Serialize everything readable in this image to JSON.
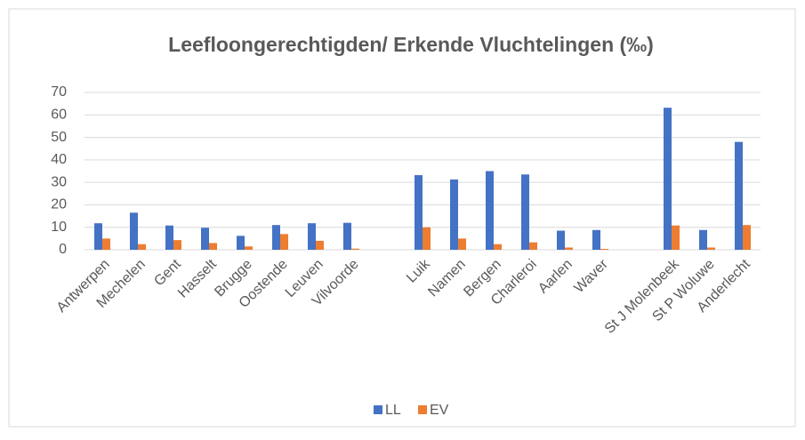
{
  "chart_data": {
    "type": "bar",
    "title": "Leefloongerechtigden/ Erkende Vluchtelingen (‰)",
    "categories": [
      "Antwerpen",
      "Mechelen",
      "Gent",
      "Hasselt",
      "Brugge",
      "Oostende",
      "Leuven",
      "Vilvoorde",
      null,
      "Luik",
      "Namen",
      "Bergen",
      "Charleroi",
      "Aarlen",
      "Waver",
      null,
      "St J Molenbeek",
      "St P Woluwe",
      "Anderlecht"
    ],
    "series": [
      {
        "name": "LL",
        "color": "#4472c4",
        "values": [
          11.8,
          16.5,
          10.8,
          9.8,
          6.2,
          11,
          11.8,
          12,
          null,
          33.2,
          31.3,
          35,
          33.5,
          8.5,
          8.8,
          null,
          63.2,
          8.8,
          48
        ]
      },
      {
        "name": "EV",
        "color": "#ed7d31",
        "values": [
          5,
          2.5,
          4.3,
          3,
          1.5,
          7,
          4,
          0.5,
          null,
          10,
          5,
          2.5,
          3.3,
          1,
          0.4,
          null,
          10.8,
          1,
          11
        ]
      }
    ],
    "ylim": [
      0,
      70
    ],
    "yticks": [
      0,
      10,
      20,
      30,
      40,
      50,
      60,
      70
    ],
    "grid": true,
    "legend": "bottom"
  }
}
